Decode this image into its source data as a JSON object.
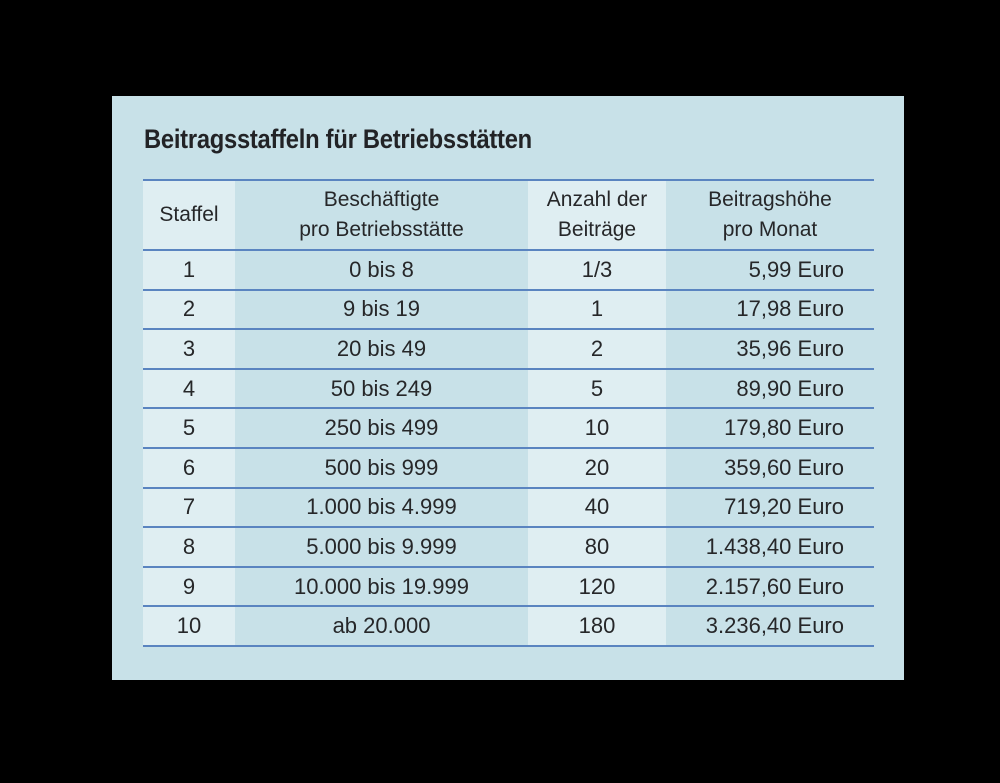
{
  "document": {
    "title": "Beitragsstaffeln für Betriebsstätten",
    "columns": [
      {
        "line1": "Staffel",
        "line2": ""
      },
      {
        "line1": "Beschäftigte",
        "line2": "pro Betriebsstätte"
      },
      {
        "line1": "Anzahl der",
        "line2": "Beiträge"
      },
      {
        "line1": "Beitragshöhe",
        "line2": "pro Monat"
      }
    ],
    "rows": [
      {
        "staffel": "1",
        "beschaeftigte": "0 bis 8",
        "anzahl": "1/3",
        "beitrag": "5,99 Euro"
      },
      {
        "staffel": "2",
        "beschaeftigte": "9 bis 19",
        "anzahl": "1",
        "beitrag": "17,98 Euro"
      },
      {
        "staffel": "3",
        "beschaeftigte": "20 bis 49",
        "anzahl": "2",
        "beitrag": "35,96 Euro"
      },
      {
        "staffel": "4",
        "beschaeftigte": "50 bis 249",
        "anzahl": "5",
        "beitrag": "89,90 Euro"
      },
      {
        "staffel": "5",
        "beschaeftigte": "250 bis 499",
        "anzahl": "10",
        "beitrag": "179,80 Euro"
      },
      {
        "staffel": "6",
        "beschaeftigte": "500 bis 999",
        "anzahl": "20",
        "beitrag": "359,60 Euro"
      },
      {
        "staffel": "7",
        "beschaeftigte": "1.000 bis 4.999",
        "anzahl": "40",
        "beitrag": "719,20 Euro"
      },
      {
        "staffel": "8",
        "beschaeftigte": "5.000 bis 9.999",
        "anzahl": "80",
        "beitrag": "1.438,40 Euro"
      },
      {
        "staffel": "9",
        "beschaeftigte": "10.000 bis 19.999",
        "anzahl": "120",
        "beitrag": "2.157,60 Euro"
      },
      {
        "staffel": "10",
        "beschaeftigte": "ab 20.000",
        "anzahl": "180",
        "beitrag": "3.236,40 Euro"
      }
    ]
  },
  "colors": {
    "background": "#000000",
    "panel": "#c8e1e8",
    "light_column": "#dfeef2",
    "rule": "#5a84c0",
    "text": "#262729"
  }
}
